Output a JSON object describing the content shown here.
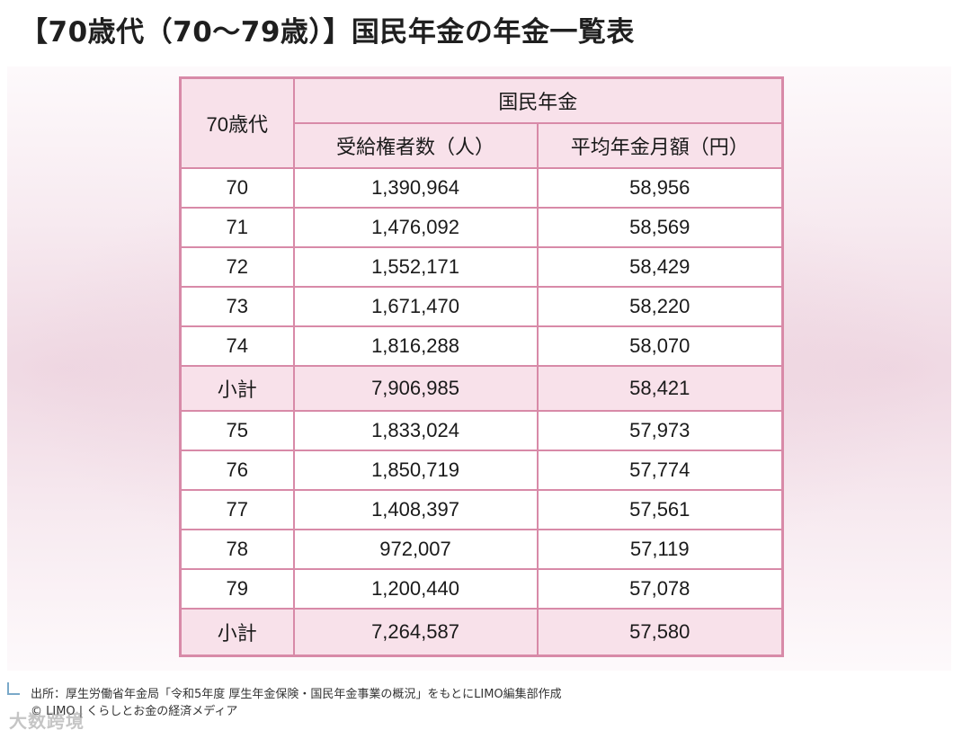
{
  "title": "【70歳代（70〜79歳）】国民年金の年金一覧表",
  "table": {
    "age_header": "70歳代",
    "group_header": "国民年金",
    "col_recipients": "受給権者数（人）",
    "col_average": "平均年金月額（円）",
    "rows": [
      {
        "age": "70",
        "recipients": "1,390,964",
        "average": "58,956"
      },
      {
        "age": "71",
        "recipients": "1,476,092",
        "average": "58,569"
      },
      {
        "age": "72",
        "recipients": "1,552,171",
        "average": "58,429"
      },
      {
        "age": "73",
        "recipients": "1,671,470",
        "average": "58,220"
      },
      {
        "age": "74",
        "recipients": "1,816,288",
        "average": "58,070"
      },
      {
        "age": "小計",
        "recipients": "7,906,985",
        "average": "58,421",
        "subtotal": true
      },
      {
        "age": "75",
        "recipients": "1,833,024",
        "average": "57,973"
      },
      {
        "age": "76",
        "recipients": "1,850,719",
        "average": "57,774"
      },
      {
        "age": "77",
        "recipients": "1,408,397",
        "average": "57,561"
      },
      {
        "age": "78",
        "recipients": "972,007",
        "average": "57,119"
      },
      {
        "age": "79",
        "recipients": "1,200,440",
        "average": "57,078"
      },
      {
        "age": "小計",
        "recipients": "7,264,587",
        "average": "57,580",
        "subtotal": true
      }
    ]
  },
  "source": "出所：厚生労働省年金局「令和5年度 厚生年金保険・国民年金事業の概況」をもとにLIMO編集部作成",
  "credit": "© LIMO | くらしとお金の経済メディア",
  "watermark": "大数跨境",
  "colors": {
    "border": "#d88aa8",
    "header_bg": "#f8e1ea"
  }
}
